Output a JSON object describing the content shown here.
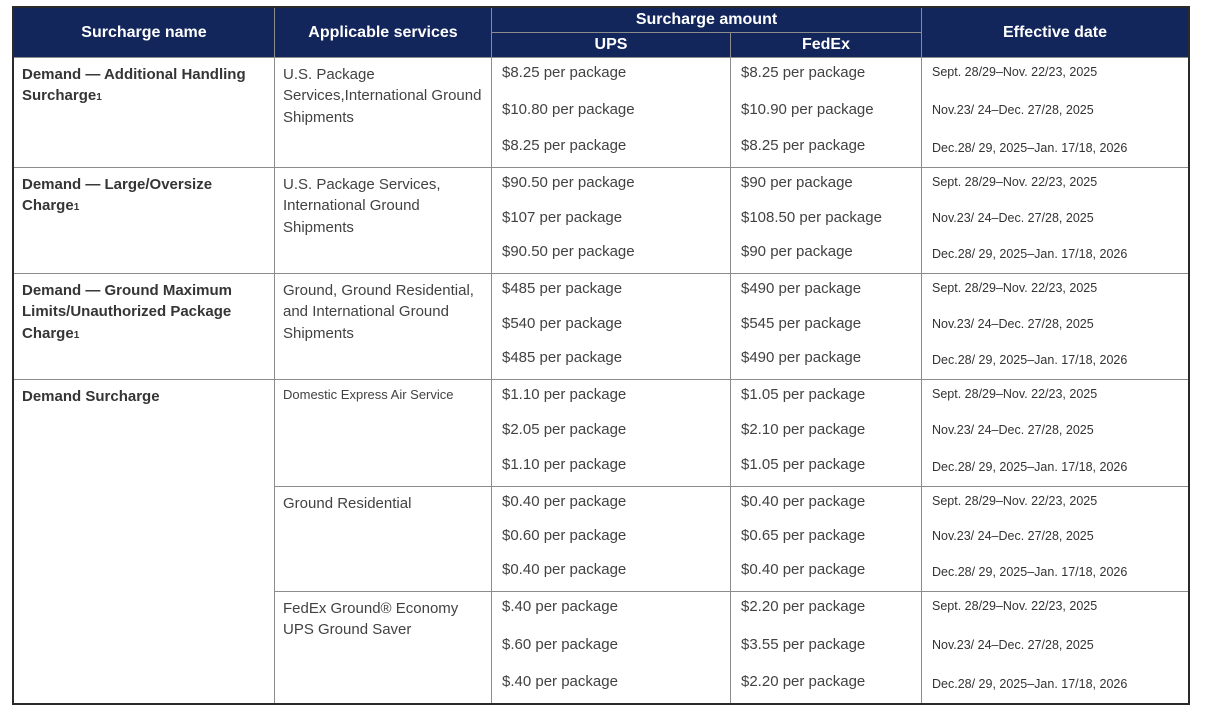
{
  "table": {
    "headers": {
      "surcharge_name": "Surcharge name",
      "applicable_services": "Applicable services",
      "surcharge_amount": "Surcharge amount",
      "ups": "UPS",
      "fedex": "FedEx",
      "effective_date": "Effective date"
    },
    "colors": {
      "header_bg": "#12265c",
      "header_text": "#ffffff",
      "inner_border": "#8c8c8c",
      "outer_border": "#2a2a2a",
      "body_text": "#424242"
    },
    "rows": [
      {
        "name": "Demand — Additional Handling Surcharge",
        "footnote": "1",
        "services": "U.S. Package Services,International Ground Shipments",
        "ups": [
          "$8.25 per package",
          "$10.80 per package",
          "$8.25 per package"
        ],
        "fedex": [
          "$8.25 per package",
          "$10.90 per package",
          "$8.25 per package"
        ],
        "dates": [
          "Sept. 28/29–Nov. 22/23, 2025",
          "Nov.23/ 24–Dec. 27/28, 2025",
          "Dec.28/ 29, 2025–Jan. 17/18, 2026"
        ]
      },
      {
        "name": "Demand — Large/Oversize Charge",
        "footnote": "1",
        "services": "U.S. Package Services, International Ground Shipments",
        "ups": [
          "$90.50 per package",
          "$107 per package",
          "$90.50 per package"
        ],
        "fedex": [
          "$90 per package",
          "$108.50 per package",
          "$90 per package"
        ],
        "dates": [
          "Sept. 28/29–Nov. 22/23, 2025",
          "Nov.23/ 24–Dec. 27/28, 2025",
          "Dec.28/ 29, 2025–Jan. 17/18, 2026"
        ]
      },
      {
        "name": "Demand — Ground Maximum Limits/Unauthorized Package Charge",
        "footnote": "1",
        "services": "Ground, Ground Residential, and International Ground Shipments",
        "ups": [
          "$485 per package",
          "$540 per package",
          "$485 per package"
        ],
        "fedex": [
          "$490 per package",
          "$545 per package",
          "$490 per package"
        ],
        "dates": [
          "Sept. 28/29–Nov. 22/23, 2025",
          "Nov.23/ 24–Dec. 27/28, 2025",
          "Dec.28/ 29, 2025–Jan. 17/18, 2026"
        ]
      },
      {
        "name": "Demand Surcharge",
        "footnote": "",
        "services": "Domestic Express Air Service",
        "ups": [
          "$1.10 per package",
          "$2.05 per package",
          "$1.10 per package"
        ],
        "fedex": [
          "$1.05 per package",
          "$2.10 per package",
          "$1.05 per package"
        ],
        "dates": [
          "Sept. 28/29–Nov. 22/23, 2025",
          "Nov.23/ 24–Dec. 27/28, 2025",
          "Dec.28/ 29, 2025–Jan. 17/18, 2026"
        ]
      },
      {
        "services": "Ground Residential",
        "ups": [
          "$0.40 per package",
          "$0.60 per package",
          "$0.40 per package"
        ],
        "fedex": [
          "$0.40 per package",
          "$0.65 per package",
          "$0.40 per package"
        ],
        "dates": [
          "Sept. 28/29–Nov. 22/23, 2025",
          "Nov.23/ 24–Dec. 27/28, 2025",
          "Dec.28/ 29, 2025–Jan. 17/18, 2026"
        ]
      },
      {
        "services": "FedEx Ground® Economy UPS Ground Saver",
        "ups": [
          "$.40 per package",
          "$.60 per package",
          "$.40 per package"
        ],
        "fedex": [
          "$2.20 per package",
          "$3.55 per package",
          "$2.20 per package"
        ],
        "dates": [
          "Sept. 28/29–Nov. 22/23, 2025",
          "Nov.23/ 24–Dec. 27/28, 2025",
          "Dec.28/ 29, 2025–Jan. 17/18, 2026"
        ]
      }
    ]
  }
}
